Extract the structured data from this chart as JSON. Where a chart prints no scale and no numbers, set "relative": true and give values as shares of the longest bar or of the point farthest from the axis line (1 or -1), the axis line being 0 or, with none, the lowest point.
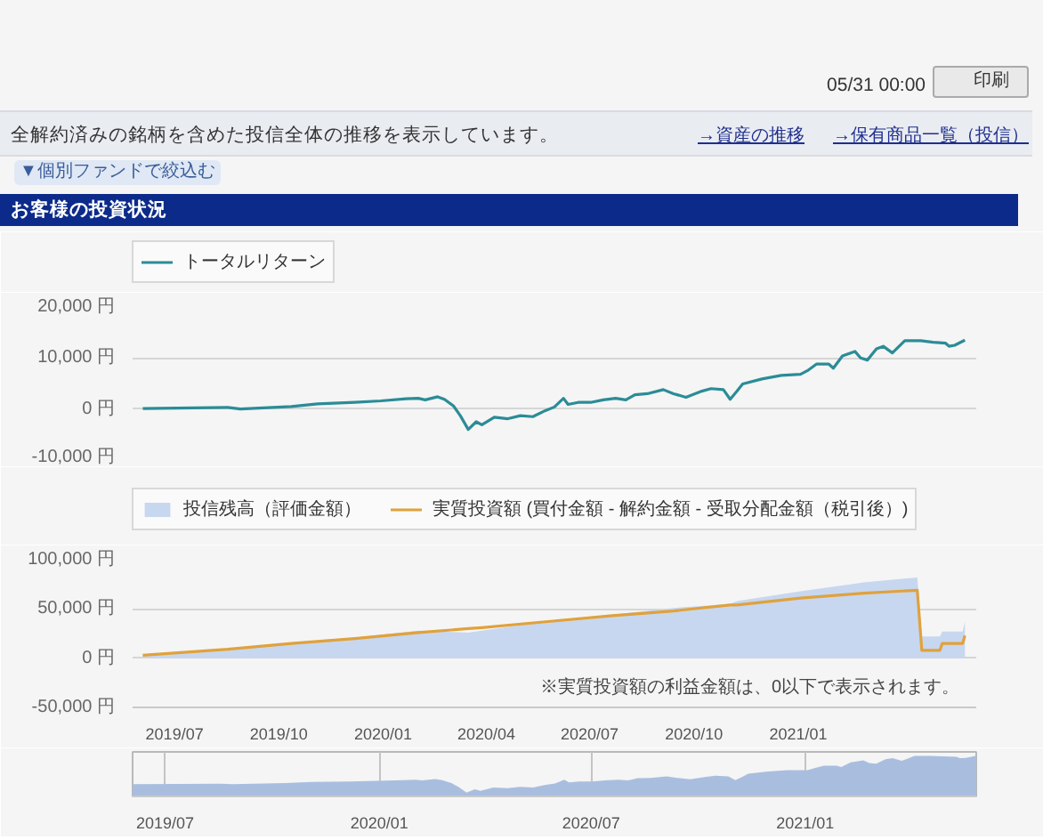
{
  "chart_data": [
    {
      "type": "line",
      "title": "お客様の投資状況",
      "annotations": [
        "05/31 00:00",
        "印刷",
        "全解約済みの銘柄を含めた投信全体の推移を表示しています。",
        "→資産の推移",
        "→保有商品一覧（投信）",
        "▼個別ファンドで絞込む"
      ],
      "x": [
        "2019-06-03",
        "2019-08-17",
        "2019-08-28",
        "2019-10-12",
        "2019-11-04",
        "2019-12-07",
        "2019-12-30",
        "2020-01-21",
        "2020-02-01",
        "2020-02-07",
        "2020-02-18",
        "2020-02-24",
        "2020-03-03",
        "2020-03-09",
        "2020-03-16",
        "2020-03-23",
        "2020-03-28",
        "2020-04-08",
        "2020-04-20",
        "2020-05-01",
        "2020-05-12",
        "2020-05-23",
        "2020-05-31",
        "2020-06-08",
        "2020-06-12",
        "2020-06-21",
        "2020-07-02",
        "2020-07-13",
        "2020-07-24",
        "2020-08-02",
        "2020-08-10",
        "2020-08-21",
        "2020-09-04",
        "2020-09-13",
        "2020-09-24",
        "2020-10-08",
        "2020-10-16",
        "2020-10-27",
        "2020-11-02",
        "2020-11-08",
        "2020-11-13",
        "2020-11-30",
        "2020-12-17",
        "2021-01-03",
        "2021-01-09",
        "2021-01-17",
        "2021-01-28",
        "2021-02-01",
        "2021-02-09",
        "2021-02-20",
        "2021-02-25",
        "2021-03-03",
        "2021-03-11",
        "2021-03-17",
        "2021-03-25",
        "2021-04-05",
        "2021-04-19",
        "2021-04-30",
        "2021-05-11",
        "2021-05-14",
        "2021-05-19",
        "2021-05-28"
      ],
      "series": [
        {
          "name": "トータルリターン",
          "color": "#2b8c96",
          "values": [
            100,
            300,
            0,
            500,
            1000,
            1300,
            1600,
            2000,
            2100,
            1800,
            2400,
            1900,
            600,
            -1300,
            -4000,
            -2500,
            -3100,
            -1600,
            -1900,
            -1300,
            -1500,
            -300,
            400,
            2100,
            900,
            1300,
            1300,
            1800,
            2100,
            1800,
            2800,
            3000,
            3800,
            3000,
            2300,
            3500,
            4000,
            3800,
            1900,
            3500,
            4900,
            5900,
            6600,
            6800,
            7500,
            8800,
            8800,
            8000,
            10400,
            11300,
            10000,
            9600,
            11800,
            12300,
            11000,
            13400,
            13400,
            13100,
            12900,
            12300,
            12500,
            13500
          ]
        }
      ],
      "xlim": [
        "2019-05-25",
        "2021-06-07"
      ],
      "ylim": [
        -10000,
        20000
      ],
      "yticks": [
        {
          "value": -10000,
          "label": "-10,000 円"
        },
        {
          "value": 0,
          "label": "0 円"
        },
        {
          "value": 10000,
          "label": "10,000 円"
        },
        {
          "value": 20000,
          "label": "20,000 円"
        }
      ],
      "tick_labels": "y",
      "grid": "y",
      "legend": "top left"
    },
    {
      "type": "area",
      "annotations": [
        "※実質投資額の利益金額は、0以下で表示されます。"
      ],
      "x": [
        "2019-06-03",
        "2019-08-17",
        "2019-10-12",
        "2019-12-07",
        "2020-02-01",
        "2020-03-16",
        "2020-03-28",
        "2020-05-23",
        "2020-07-19",
        "2020-09-13",
        "2020-11-02",
        "2020-11-08",
        "2021-01-03",
        "2021-02-28",
        "2021-04-16",
        "2021-04-20",
        "2021-05-06",
        "2021-05-08",
        "2021-05-26",
        "2021-05-28"
      ],
      "series": [
        {
          "name": "投信残高（評価金額）",
          "type": "area",
          "color": "#c7d7ef",
          "values": [
            3000,
            9000,
            16000,
            21000,
            28000,
            26000,
            28000,
            37000,
            44000,
            51000,
            55000,
            58000,
            68000,
            77000,
            82000,
            22000,
            22000,
            27000,
            27000,
            37000
          ]
        },
        {
          "name": "実質投資額 (買付金額 - 解約金額 - 受取分配金額（税引後）)",
          "type": "line",
          "color": "#e0a23c",
          "values": [
            3000,
            9000,
            15000,
            20000,
            26000,
            30000,
            31000,
            37000,
            43000,
            48000,
            54000,
            54000,
            61000,
            66000,
            69000,
            8000,
            8000,
            15000,
            15000,
            23000
          ]
        }
      ],
      "xlim": [
        "2019-05-25",
        "2021-06-07"
      ],
      "xticks": [
        {
          "value": "2019-07-01",
          "label": "2019/07"
        },
        {
          "value": "2019-10-01",
          "label": "2019/10"
        },
        {
          "value": "2020-01-01",
          "label": "2020/01"
        },
        {
          "value": "2020-04-01",
          "label": "2020/04"
        },
        {
          "value": "2020-07-01",
          "label": "2020/07"
        },
        {
          "value": "2020-10-01",
          "label": "2020/10"
        },
        {
          "value": "2021-01-01",
          "label": "2021/01"
        }
      ],
      "ylim": [
        -50000,
        100000
      ],
      "yticks": [
        {
          "value": -50000,
          "label": "-50,000 円"
        },
        {
          "value": 0,
          "label": "0 円"
        },
        {
          "value": 50000,
          "label": "50,000 円"
        },
        {
          "value": 100000,
          "label": "100,000 円"
        }
      ],
      "grid": "y",
      "legend": "top left"
    },
    {
      "type": "area",
      "relative": true,
      "x": [
        "2019-06-03",
        "2019-08-17",
        "2019-08-28",
        "2019-10-12",
        "2019-11-04",
        "2019-12-07",
        "2019-12-30",
        "2020-01-21",
        "2020-02-01",
        "2020-02-07",
        "2020-02-18",
        "2020-02-24",
        "2020-03-03",
        "2020-03-09",
        "2020-03-16",
        "2020-03-23",
        "2020-03-28",
        "2020-04-08",
        "2020-04-20",
        "2020-05-01",
        "2020-05-12",
        "2020-05-23",
        "2020-05-31",
        "2020-06-08",
        "2020-06-12",
        "2020-06-21",
        "2020-07-02",
        "2020-07-13",
        "2020-07-24",
        "2020-08-02",
        "2020-08-10",
        "2020-08-21",
        "2020-09-04",
        "2020-09-13",
        "2020-09-24",
        "2020-10-08",
        "2020-10-16",
        "2020-10-27",
        "2020-11-02",
        "2020-11-08",
        "2020-11-13",
        "2020-11-30",
        "2020-12-17",
        "2021-01-03",
        "2021-01-09",
        "2021-01-17",
        "2021-01-28",
        "2021-02-01",
        "2021-02-09",
        "2021-02-20",
        "2021-02-25",
        "2021-03-03",
        "2021-03-11",
        "2021-03-17",
        "2021-03-25",
        "2021-04-05",
        "2021-04-19",
        "2021-04-30",
        "2021-05-11",
        "2021-05-14",
        "2021-05-19",
        "2021-05-28"
      ],
      "series": [
        {
          "color": "#a9bedf",
          "values": [
            0.23,
            0.24,
            0.23,
            0.26,
            0.29,
            0.3,
            0.32,
            0.34,
            0.35,
            0.33,
            0.37,
            0.34,
            0.26,
            0.16,
            0,
            0.09,
            0.05,
            0.14,
            0.12,
            0.16,
            0.14,
            0.21,
            0.25,
            0.35,
            0.28,
            0.3,
            0.3,
            0.33,
            0.35,
            0.33,
            0.39,
            0.4,
            0.44,
            0.4,
            0.36,
            0.43,
            0.46,
            0.44,
            0.34,
            0.43,
            0.51,
            0.57,
            0.61,
            0.61,
            0.66,
            0.73,
            0.73,
            0.69,
            0.82,
            0.87,
            0.8,
            0.78,
            0.9,
            0.93,
            0.86,
            0.99,
            0.99,
            0.98,
            0.97,
            0.93,
            0.94,
            1.0
          ]
        }
      ],
      "xlim": [
        "2019-06-03",
        "2021-05-28"
      ],
      "xticks": [
        {
          "value": "2019-07-01",
          "label": "2019/07"
        },
        {
          "value": "2020-01-01",
          "label": "2020/01"
        },
        {
          "value": "2020-07-01",
          "label": "2020/07"
        },
        {
          "value": "2021-01-01",
          "label": "2021/01"
        }
      ],
      "tick_labels": "x",
      "grid": "x"
    }
  ]
}
